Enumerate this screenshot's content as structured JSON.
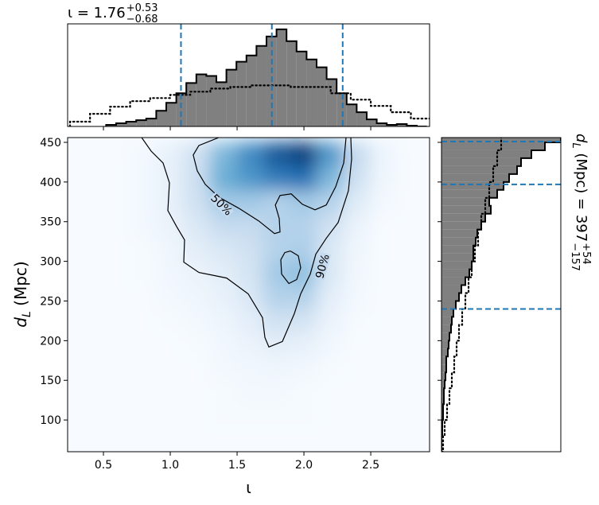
{
  "chart_data": [
    {
      "type": "heatmap",
      "xlabel": "ι",
      "ylabel": {
        "symbol": "d",
        "subscript": "L",
        "unit": " (Mpc)"
      },
      "xlim": [
        0.232,
        2.94
      ],
      "ylim": [
        60,
        456
      ],
      "xticks": [
        0.5,
        {
          "value": 1,
          "label": "1.0"
        },
        1.5,
        {
          "value": 2,
          "label": "2.0"
        },
        2.5
      ],
      "yticks": [
        100,
        150,
        200,
        250,
        300,
        350,
        400,
        450
      ],
      "colormap": [
        "#f7fbff",
        "#c6dbef",
        "#6baed6",
        "#2171b5",
        "#08306b"
      ],
      "xbins": [
        0.3,
        0.5,
        0.7,
        0.9,
        1.1,
        1.3,
        1.5,
        1.7,
        1.9,
        2.1,
        2.3,
        2.5,
        2.7,
        2.9
      ],
      "ybins": [
        60,
        90,
        120,
        150,
        180,
        210,
        240,
        270,
        300,
        330,
        360,
        390,
        420,
        450
      ],
      "z": [
        [
          0,
          0,
          0,
          0,
          0,
          0,
          0,
          0,
          0,
          0,
          0,
          0,
          0
        ],
        [
          0,
          0,
          0,
          0,
          0,
          0.01,
          0.01,
          0.01,
          0.01,
          0,
          0,
          0,
          0
        ],
        [
          0,
          0,
          0,
          0,
          0,
          0.01,
          0.02,
          0.02,
          0.01,
          0,
          0,
          0,
          0
        ],
        [
          0,
          0,
          0,
          0,
          0,
          0.02,
          0.03,
          0.04,
          0.03,
          0.01,
          0,
          0,
          0
        ],
        [
          0,
          0,
          0,
          0,
          0.01,
          0.03,
          0.06,
          0.1,
          0.08,
          0.03,
          0,
          0,
          0
        ],
        [
          0,
          0,
          0,
          0.01,
          0.02,
          0.05,
          0.1,
          0.2,
          0.18,
          0.06,
          0.01,
          0,
          0
        ],
        [
          0,
          0,
          0,
          0.02,
          0.04,
          0.08,
          0.15,
          0.3,
          0.3,
          0.1,
          0.02,
          0,
          0
        ],
        [
          0,
          0,
          0.01,
          0.03,
          0.06,
          0.1,
          0.18,
          0.35,
          0.4,
          0.15,
          0.03,
          0,
          0
        ],
        [
          0,
          0,
          0.01,
          0.04,
          0.1,
          0.15,
          0.2,
          0.3,
          0.32,
          0.15,
          0.04,
          0,
          0
        ],
        [
          0,
          0,
          0.02,
          0.06,
          0.15,
          0.25,
          0.25,
          0.3,
          0.3,
          0.2,
          0.06,
          0,
          0
        ],
        [
          0,
          0,
          0.02,
          0.08,
          0.2,
          0.35,
          0.35,
          0.3,
          0.35,
          0.3,
          0.12,
          0.02,
          0
        ],
        [
          0,
          0,
          0.02,
          0.08,
          0.22,
          0.5,
          0.6,
          0.7,
          0.75,
          0.45,
          0.2,
          0.04,
          0
        ],
        [
          0,
          0,
          0.02,
          0.08,
          0.2,
          0.45,
          0.65,
          0.85,
          0.95,
          0.6,
          0.25,
          0.05,
          0
        ]
      ],
      "contours": [
        {
          "level": "90%",
          "x": [
            0.786,
            0.857,
            0.946,
            0.994,
            0.982,
            1.047,
            1.107,
            1.101,
            1.214,
            1.422,
            1.583,
            1.69,
            1.708,
            1.738,
            1.839,
            1.928,
            1.976,
            2.047,
            2.089,
            2.167,
            2.256,
            2.333,
            2.357,
            2.351
          ],
          "y": [
            456,
            439,
            424,
            399,
            364,
            344,
            327,
            299,
            286,
            279,
            259,
            229,
            204,
            192,
            199,
            234,
            259,
            284,
            309,
            329,
            349,
            389,
            429,
            456
          ]
        },
        {
          "level": "50%",
          "x": [
            1.363,
            1.214,
            1.172,
            1.202,
            1.262,
            1.363,
            1.512,
            1.661,
            1.78,
            1.821,
            1.815,
            1.786,
            1.821,
            1.905,
            1.988,
            2.083,
            2.167,
            2.238,
            2.298,
            2.315
          ],
          "y": [
            456,
            446,
            434,
            414,
            397,
            381,
            367,
            351,
            335,
            337,
            354,
            371,
            383,
            385,
            372,
            365,
            371,
            394,
            424,
            456
          ]
        },
        {
          "level": "50%",
          "x": [
            1.899,
            1.958,
            1.976,
            1.946,
            1.887,
            1.833,
            1.827,
            1.857,
            1.899
          ],
          "y": [
            313,
            307,
            292,
            277,
            272,
            284,
            302,
            311,
            313
          ]
        }
      ]
    },
    {
      "type": "histogram",
      "orientation": "vertical",
      "title": {
        "text": "ι = 1.76",
        "upper": {
          "value": 0.53,
          "label": "+0.53"
        },
        "lower": {
          "value": -0.68,
          "label": "−0.68"
        }
      },
      "xlim": [
        0.232,
        2.94
      ],
      "ylim": [
        0,
        130
      ],
      "color": "#808080",
      "bins": [
        0.52,
        0.595,
        0.67,
        0.745,
        0.82,
        0.895,
        0.97,
        1.045,
        1.12,
        1.195,
        1.27,
        1.345,
        1.42,
        1.495,
        1.57,
        1.645,
        1.72,
        1.795,
        1.87,
        1.945,
        2.02,
        2.095,
        2.17,
        2.245,
        2.32,
        2.395,
        2.47,
        2.545,
        2.62,
        2.695,
        2.77,
        2.845,
        2.92
      ],
      "values": [
        2,
        4,
        6,
        8,
        10,
        20,
        30,
        42,
        55,
        66,
        64,
        56,
        72,
        82,
        90,
        102,
        114,
        123,
        108,
        95,
        85,
        75,
        60,
        42,
        28,
        18,
        9,
        4,
        2,
        3,
        1,
        0
      ],
      "prior": {
        "bins": [
          0.25,
          0.4,
          0.55,
          0.7,
          0.85,
          1.0,
          1.15,
          1.3,
          1.45,
          1.6,
          1.75,
          1.9,
          2.05,
          2.2,
          2.35,
          2.5,
          2.65,
          2.8,
          2.95
        ],
        "values": [
          6,
          16,
          25,
          32,
          36,
          40,
          44,
          48,
          50,
          52,
          52,
          50,
          50,
          42,
          34,
          26,
          18,
          10
        ]
      },
      "quantile_lines": [
        1.08,
        1.76,
        2.29
      ],
      "line_color": "#1f77b4"
    },
    {
      "type": "histogram",
      "orientation": "horizontal",
      "title": {
        "symbol": "d",
        "subscript": "L",
        "text": " (Mpc) = 397",
        "upper": {
          "value": 54,
          "label": "+54"
        },
        "lower": {
          "value": -157,
          "label": "−157"
        }
      },
      "xlim": [
        0,
        150
      ],
      "ylim": [
        60,
        456
      ],
      "color": "#808080",
      "bins": [
        60,
        70,
        80,
        90,
        100,
        110,
        120,
        130,
        140,
        150,
        160,
        170,
        180,
        190,
        200,
        210,
        220,
        230,
        240,
        250,
        260,
        270,
        280,
        290,
        300,
        310,
        320,
        330,
        340,
        350,
        360,
        370,
        380,
        390,
        400,
        410,
        420,
        430,
        440,
        450,
        460
      ],
      "values": [
        0,
        0,
        1,
        1,
        2,
        2,
        3,
        3,
        4,
        5,
        6,
        6,
        8,
        9,
        10,
        12,
        13,
        15,
        18,
        22,
        25,
        30,
        35,
        38,
        40,
        40,
        43,
        45,
        50,
        55,
        62,
        60,
        70,
        78,
        85,
        95,
        100,
        113,
        130,
        150
      ],
      "prior": {
        "bins": [
          60,
          80,
          100,
          120,
          140,
          160,
          180,
          200,
          220,
          240,
          260,
          280,
          300,
          320,
          340,
          360,
          380,
          400,
          420,
          440,
          460
        ],
        "values": [
          2,
          4,
          7,
          10,
          13,
          16,
          19,
          22,
          26,
          30,
          34,
          38,
          42,
          46,
          50,
          55,
          60,
          65,
          70,
          75
        ]
      },
      "quantile_lines": [
        240,
        397,
        451
      ],
      "line_color": "#1f77b4"
    }
  ]
}
